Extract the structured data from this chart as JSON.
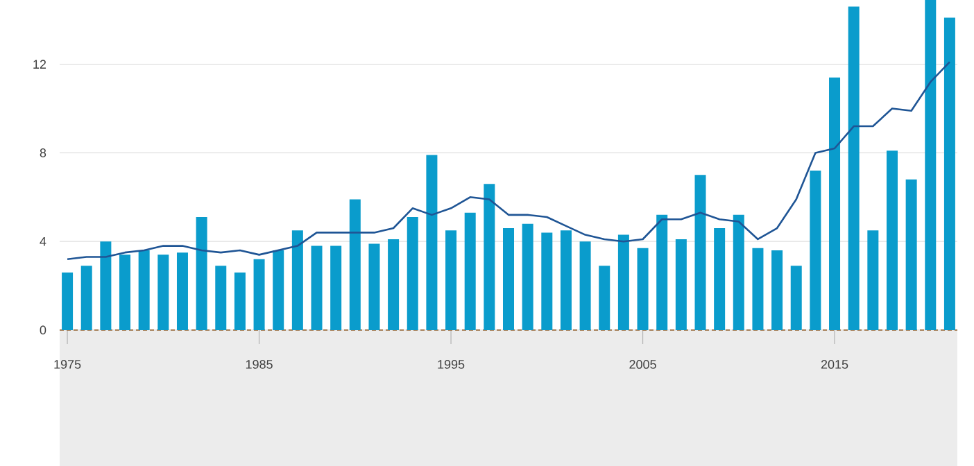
{
  "chart_data": {
    "type": "bar",
    "x": [
      1975,
      1976,
      1977,
      1978,
      1979,
      1980,
      1981,
      1982,
      1983,
      1984,
      1985,
      1986,
      1987,
      1988,
      1989,
      1990,
      1991,
      1992,
      1993,
      1994,
      1995,
      1996,
      1997,
      1998,
      1999,
      2000,
      2001,
      2002,
      2003,
      2004,
      2005,
      2006,
      2007,
      2008,
      2009,
      2010,
      2011,
      2012,
      2013,
      2014,
      2015,
      2016,
      2017,
      2018,
      2019,
      2020,
      2021
    ],
    "series": [
      {
        "color": "#0a9ccc",
        "values": [
          2.6,
          2.9,
          4.0,
          3.4,
          3.6,
          3.4,
          3.5,
          5.1,
          2.9,
          2.6,
          3.2,
          3.6,
          4.5,
          3.8,
          3.8,
          5.9,
          3.9,
          4.1,
          5.1,
          7.9,
          4.5,
          5.3,
          6.6,
          4.6,
          4.8,
          4.4,
          4.5,
          4.0,
          2.9,
          4.3,
          3.7,
          5.2,
          4.1,
          7.0,
          4.6,
          5.2,
          3.7,
          3.6,
          2.9,
          7.2,
          11.4,
          14.6,
          4.5,
          8.1,
          6.8,
          14.9,
          14.1
        ]
      },
      {
        "type": "line",
        "color": "#1f5595",
        "values": [
          3.2,
          3.3,
          3.3,
          3.5,
          3.6,
          3.8,
          3.8,
          3.6,
          3.5,
          3.6,
          3.4,
          3.6,
          3.8,
          4.4,
          4.4,
          4.4,
          4.4,
          4.6,
          5.5,
          5.2,
          5.5,
          6.0,
          5.9,
          5.2,
          5.2,
          5.1,
          4.7,
          4.3,
          4.1,
          4.0,
          4.1,
          5.0,
          5.0,
          5.3,
          5.0,
          4.9,
          4.1,
          4.6,
          5.9,
          8.0,
          8.2,
          9.2,
          9.2,
          10.0,
          9.9,
          11.2,
          12.1
        ]
      }
    ],
    "xlim": [
      1974.6,
      2021.4
    ],
    "ylim": [
      0,
      14.9
    ],
    "xticks": [
      1975,
      1985,
      1995,
      2005,
      2015
    ],
    "yticks": [
      0,
      4,
      8,
      12
    ],
    "grid": "y"
  }
}
